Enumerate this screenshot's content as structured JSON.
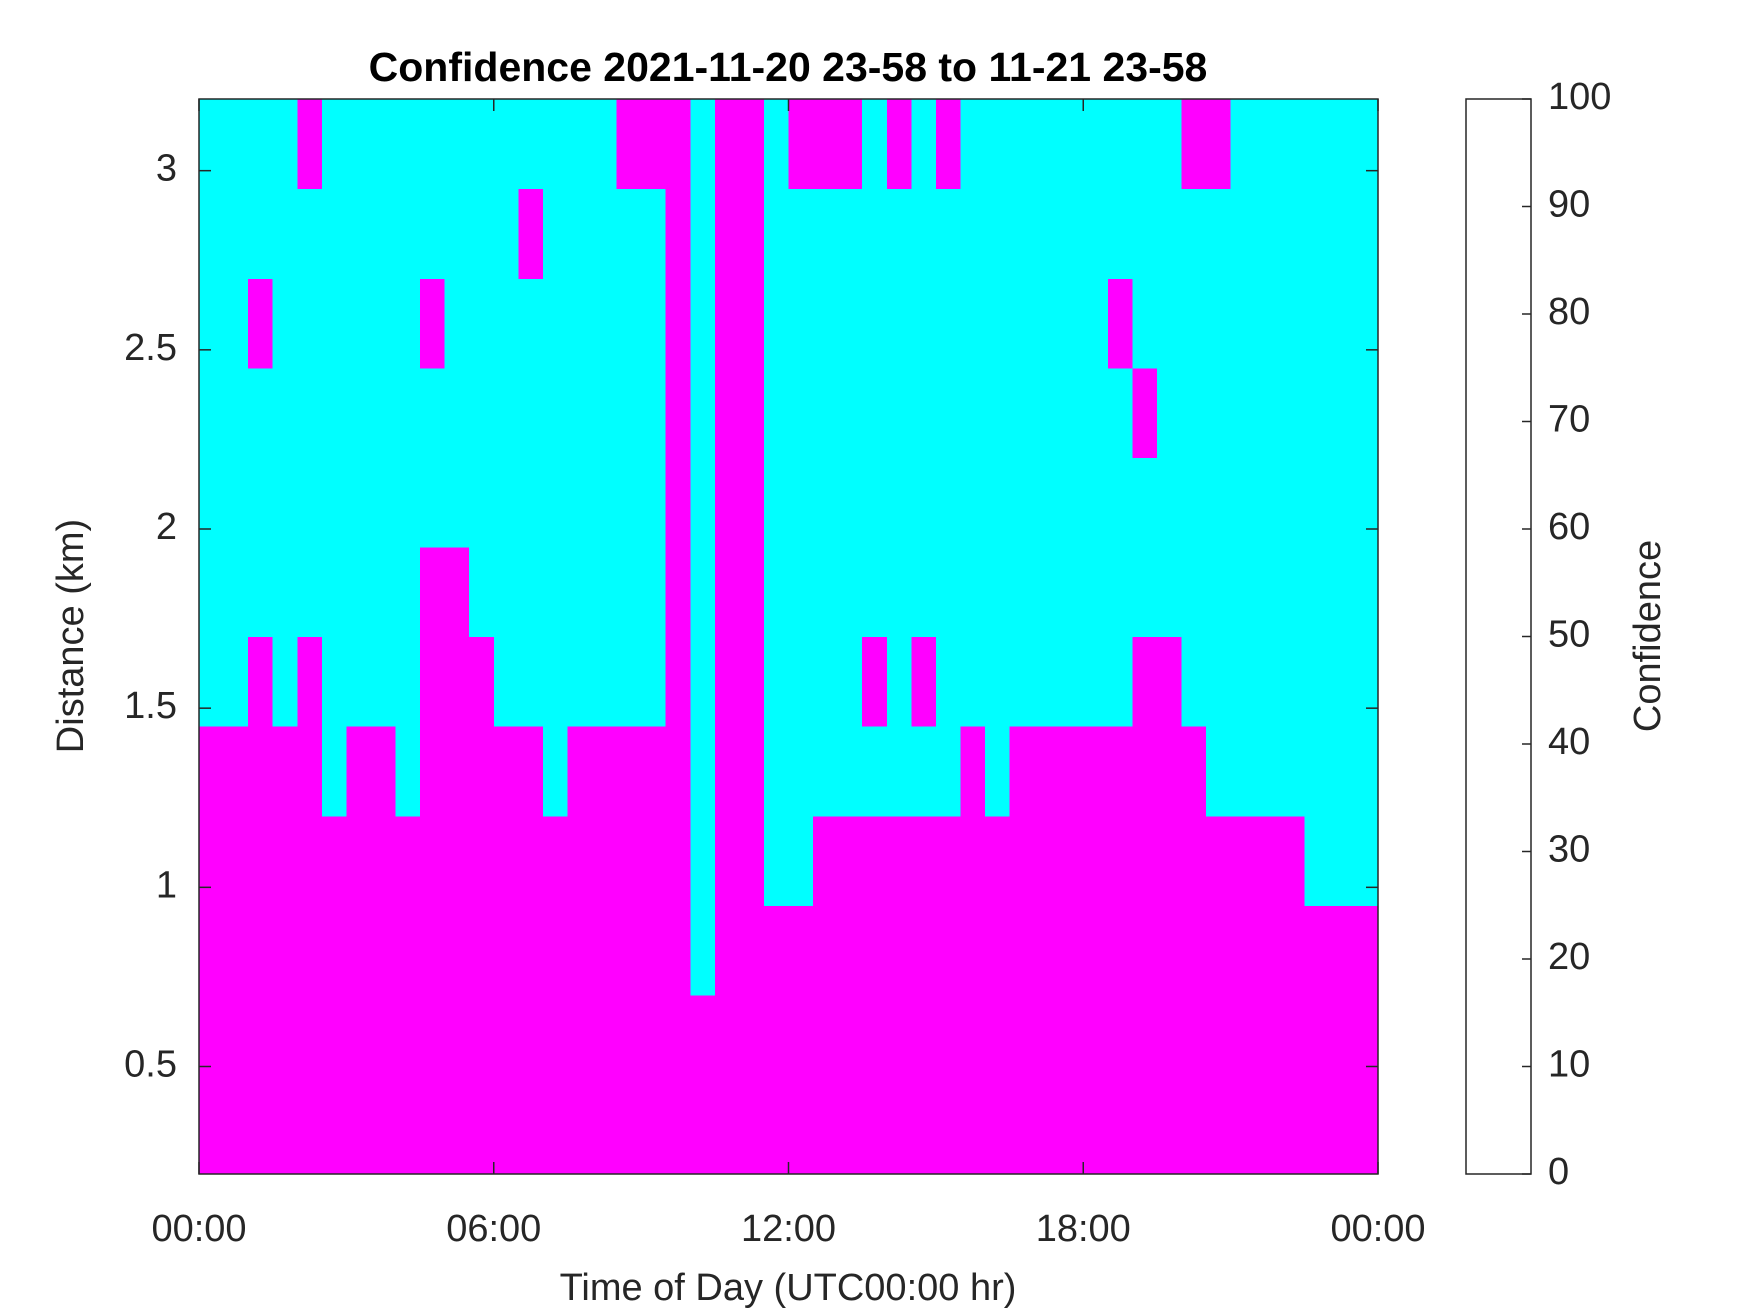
{
  "chart_data": {
    "type": "heatmap",
    "title": "Confidence 2021-11-20 23-58 to 11-21 23-58",
    "x_label": "Time of Day (UTC00:00 hr)",
    "y_label": "Distance (km)",
    "colorbar_label": "Confidence",
    "colormap": [
      "#00ffff",
      "#ff00ff"
    ],
    "clim": [
      0,
      100
    ],
    "cticks": [
      0,
      10,
      20,
      30,
      40,
      50,
      60,
      70,
      80,
      90,
      100
    ],
    "xlim": [
      0,
      24
    ],
    "xticks": [
      {
        "value": 0,
        "label": "00:00"
      },
      {
        "value": 6,
        "label": "06:00"
      },
      {
        "value": 12,
        "label": "12:00"
      },
      {
        "value": 18,
        "label": "18:00"
      },
      {
        "value": 24,
        "label": "00:00"
      }
    ],
    "ylim": [
      0.2,
      3.2
    ],
    "yticks": [
      0.5,
      1,
      1.5,
      2,
      2.5,
      3
    ],
    "xbins": [
      0,
      0.5,
      1,
      1.5,
      2,
      2.5,
      3,
      3.5,
      4,
      4.5,
      5,
      5.5,
      6,
      6.5,
      7,
      7.5,
      8,
      8.5,
      9,
      9.5,
      10,
      10.5,
      11,
      11.5,
      12,
      12.5,
      13,
      13.5,
      14,
      14.5,
      15,
      15.5,
      16,
      16.5,
      17,
      17.5,
      18,
      18.5,
      19,
      19.5,
      20,
      20.5,
      21,
      21.5,
      22,
      22.5,
      23,
      23.5,
      24
    ],
    "ybins": [
      0.2,
      0.45,
      0.7,
      0.95,
      1.2,
      1.45,
      1.7,
      1.95,
      2.2,
      2.45,
      2.7,
      2.95,
      3.2
    ],
    "z": [
      [
        100,
        100,
        100,
        100,
        100,
        100,
        100,
        100,
        100,
        100,
        100,
        100,
        100,
        100,
        100,
        100,
        100,
        100,
        100,
        100,
        100,
        100,
        100,
        100,
        100,
        100,
        100,
        100,
        100,
        100,
        100,
        100,
        100,
        100,
        100,
        100,
        100,
        100,
        100,
        100,
        100,
        100,
        100,
        100,
        100,
        100,
        100,
        100
      ],
      [
        100,
        100,
        100,
        100,
        100,
        100,
        100,
        100,
        100,
        100,
        100,
        100,
        100,
        100,
        100,
        100,
        100,
        100,
        100,
        100,
        100,
        100,
        100,
        100,
        100,
        100,
        100,
        100,
        100,
        100,
        100,
        100,
        100,
        100,
        100,
        100,
        100,
        100,
        100,
        100,
        100,
        100,
        100,
        100,
        100,
        100,
        100,
        100
      ],
      [
        100,
        100,
        100,
        100,
        100,
        100,
        100,
        100,
        100,
        100,
        100,
        100,
        100,
        100,
        100,
        100,
        100,
        100,
        100,
        100,
        0,
        100,
        100,
        100,
        100,
        100,
        100,
        100,
        100,
        100,
        100,
        100,
        100,
        100,
        100,
        100,
        100,
        100,
        100,
        100,
        100,
        100,
        100,
        100,
        100,
        100,
        100,
        100
      ],
      [
        100,
        100,
        100,
        100,
        100,
        100,
        100,
        100,
        100,
        100,
        100,
        100,
        100,
        100,
        100,
        100,
        100,
        100,
        100,
        100,
        0,
        100,
        100,
        0,
        0,
        100,
        100,
        100,
        100,
        100,
        100,
        100,
        100,
        100,
        100,
        100,
        100,
        100,
        100,
        100,
        100,
        100,
        100,
        100,
        100,
        0,
        0,
        0
      ],
      [
        100,
        100,
        100,
        100,
        100,
        0,
        100,
        100,
        0,
        100,
        100,
        100,
        100,
        100,
        0,
        100,
        100,
        100,
        100,
        100,
        0,
        100,
        100,
        0,
        0,
        0,
        0,
        0,
        0,
        0,
        0,
        100,
        0,
        100,
        100,
        100,
        100,
        100,
        100,
        100,
        100,
        0,
        0,
        0,
        0,
        0,
        0,
        0
      ],
      [
        0,
        0,
        100,
        0,
        100,
        0,
        0,
        0,
        0,
        100,
        100,
        100,
        0,
        0,
        0,
        0,
        0,
        0,
        0,
        100,
        0,
        100,
        100,
        0,
        0,
        0,
        0,
        100,
        0,
        100,
        0,
        0,
        0,
        0,
        0,
        0,
        0,
        0,
        100,
        100,
        0,
        0,
        0,
        0,
        0,
        0,
        0,
        0
      ],
      [
        0,
        0,
        0,
        0,
        0,
        0,
        0,
        0,
        0,
        100,
        100,
        0,
        0,
        0,
        0,
        0,
        0,
        0,
        0,
        100,
        0,
        100,
        100,
        0,
        0,
        0,
        0,
        0,
        0,
        0,
        0,
        0,
        0,
        0,
        0,
        0,
        0,
        0,
        0,
        0,
        0,
        0,
        0,
        0,
        0,
        0,
        0,
        0
      ],
      [
        0,
        0,
        0,
        0,
        0,
        0,
        0,
        0,
        0,
        0,
        0,
        0,
        0,
        0,
        0,
        0,
        0,
        0,
        0,
        100,
        0,
        100,
        100,
        0,
        0,
        0,
        0,
        0,
        0,
        0,
        0,
        0,
        0,
        0,
        0,
        0,
        0,
        0,
        0,
        0,
        0,
        0,
        0,
        0,
        0,
        0,
        0,
        0
      ],
      [
        0,
        0,
        0,
        0,
        0,
        0,
        0,
        0,
        0,
        0,
        0,
        0,
        0,
        0,
        0,
        0,
        0,
        0,
        0,
        100,
        0,
        100,
        100,
        0,
        0,
        0,
        0,
        0,
        0,
        0,
        0,
        0,
        0,
        0,
        0,
        0,
        0,
        0,
        100,
        0,
        0,
        0,
        0,
        0,
        0,
        0,
        0,
        0
      ],
      [
        0,
        0,
        100,
        0,
        0,
        0,
        0,
        0,
        0,
        100,
        0,
        0,
        0,
        0,
        0,
        0,
        0,
        0,
        0,
        100,
        0,
        100,
        100,
        0,
        0,
        0,
        0,
        0,
        0,
        0,
        0,
        0,
        0,
        0,
        0,
        0,
        0,
        100,
        0,
        0,
        0,
        0,
        0,
        0,
        0,
        0,
        0,
        0
      ],
      [
        0,
        0,
        0,
        0,
        0,
        0,
        0,
        0,
        0,
        0,
        0,
        0,
        0,
        100,
        0,
        0,
        0,
        0,
        0,
        100,
        0,
        100,
        100,
        0,
        0,
        0,
        0,
        0,
        0,
        0,
        0,
        0,
        0,
        0,
        0,
        0,
        0,
        0,
        0,
        0,
        0,
        0,
        0,
        0,
        0,
        0,
        0,
        0
      ],
      [
        0,
        0,
        0,
        0,
        100,
        0,
        0,
        0,
        0,
        0,
        0,
        0,
        0,
        0,
        0,
        0,
        0,
        100,
        100,
        100,
        0,
        100,
        100,
        0,
        100,
        100,
        100,
        0,
        100,
        0,
        100,
        0,
        0,
        0,
        0,
        0,
        0,
        0,
        0,
        0,
        100,
        100,
        0,
        0,
        0,
        0,
        0,
        0
      ]
    ]
  }
}
